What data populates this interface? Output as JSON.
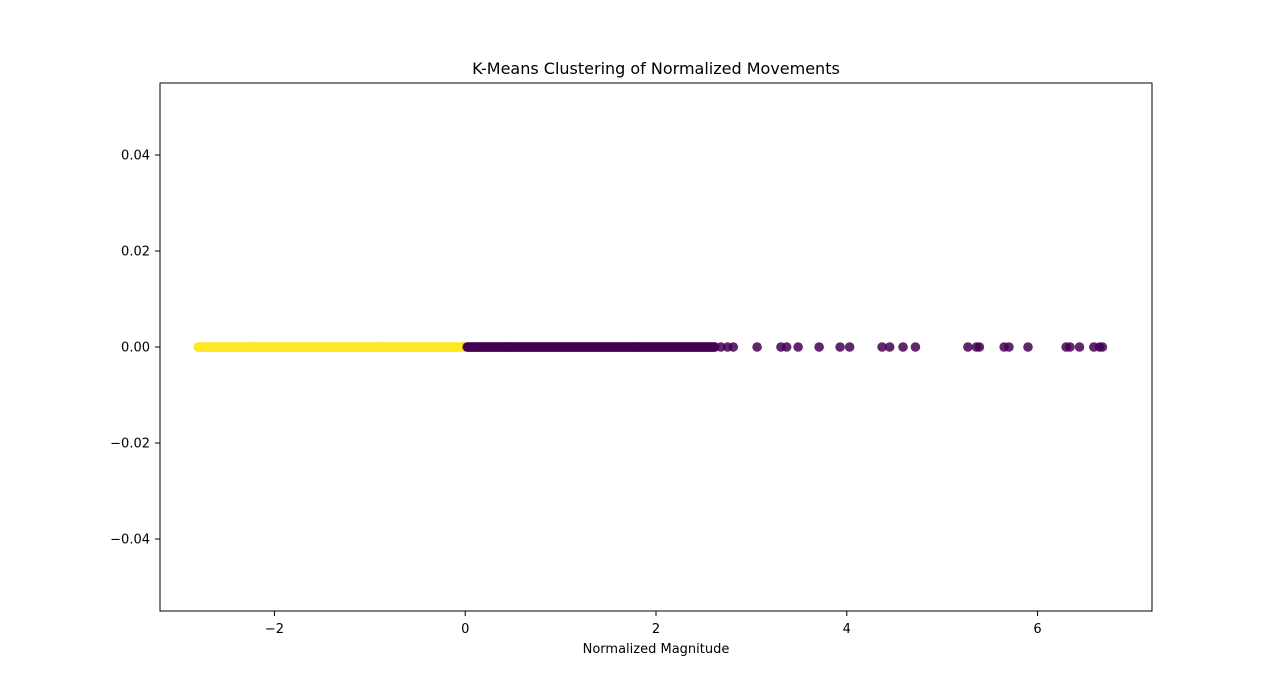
{
  "colors": {
    "cluster_0": "#440154",
    "cluster_1": "#fde725",
    "axes": "#000000",
    "background": "#ffffff"
  },
  "chart_data": {
    "type": "scatter",
    "title": "K-Means Clustering of Normalized Movements",
    "xlabel": "Normalized Magnitude",
    "ylabel": "",
    "xlim": [
      -3.2,
      7.2
    ],
    "ylim": [
      -0.055,
      0.055
    ],
    "x_ticks": [
      {
        "value": -2,
        "label": "−2"
      },
      {
        "value": 0,
        "label": "0"
      },
      {
        "value": 2,
        "label": "2"
      },
      {
        "value": 4,
        "label": "4"
      },
      {
        "value": 6,
        "label": "6"
      }
    ],
    "y_ticks": [
      {
        "value": 0.04,
        "label": "0.04"
      },
      {
        "value": 0.02,
        "label": "0.02"
      },
      {
        "value": 0.0,
        "label": "0.00"
      },
      {
        "value": -0.02,
        "label": "−0.02"
      },
      {
        "value": -0.04,
        "label": "−0.04"
      }
    ],
    "grid": false,
    "legend": "none",
    "series": [
      {
        "color": "#fde725",
        "x_range": [
          -2.8,
          0.02
        ],
        "y": 0.0,
        "x": []
      },
      {
        "color": "#440154",
        "x_range": [
          0.02,
          2.62
        ],
        "y": 0.0,
        "x": [
          2.68,
          2.75,
          2.81,
          3.06,
          3.31,
          3.37,
          3.49,
          3.71,
          3.93,
          4.03,
          4.37,
          4.45,
          4.59,
          4.72,
          5.27,
          5.36,
          5.39,
          5.65,
          5.7,
          5.9,
          6.3,
          6.34,
          6.44,
          6.59,
          6.65,
          6.68
        ]
      }
    ]
  }
}
